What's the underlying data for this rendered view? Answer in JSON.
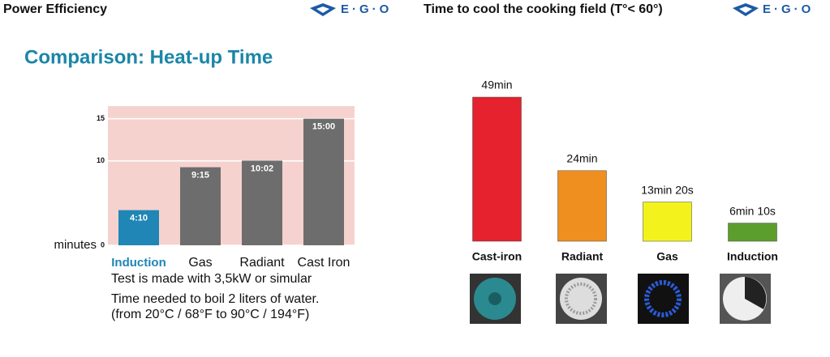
{
  "header": {
    "left_title": "Power Efficiency",
    "right_title": "Time to cool the cooking field (T°< 60°)",
    "logo": "E·G·O",
    "slide_title": "Comparison: Heat-up Time"
  },
  "notes": [
    "Test is made with 3,5kW or simular",
    "Time needed to boil 2 liters of water.",
    "(from 20°C / 68°F to 90°C / 194°F)"
  ],
  "chart_data": [
    {
      "type": "bar",
      "y_label": "minutes",
      "categories": [
        "Induction",
        "Gas",
        "Radiant",
        "Cast Iron"
      ],
      "values": [
        4.1667,
        9.25,
        10.0333,
        15
      ],
      "value_labels": [
        "4:10",
        "9:15",
        "10:02",
        "15:00"
      ],
      "colors": [
        "#1f86b5",
        "#6d6d6d",
        "#6d6d6d",
        "#6d6d6d"
      ],
      "ylim": [
        0,
        16.5
      ],
      "yticks": [
        0,
        10,
        15
      ],
      "grid": true
    },
    {
      "type": "bar",
      "categories": [
        "Cast-iron",
        "Radiant",
        "Gas",
        "Induction"
      ],
      "values": [
        49,
        24,
        13.3333,
        6.1667
      ],
      "value_labels": [
        "49min",
        "24min",
        "13min 20s",
        "6min 10s"
      ],
      "colors": [
        "#e5222e",
        "#ef8f1f",
        "#f4f21c",
        "#5c9e2e"
      ]
    }
  ]
}
